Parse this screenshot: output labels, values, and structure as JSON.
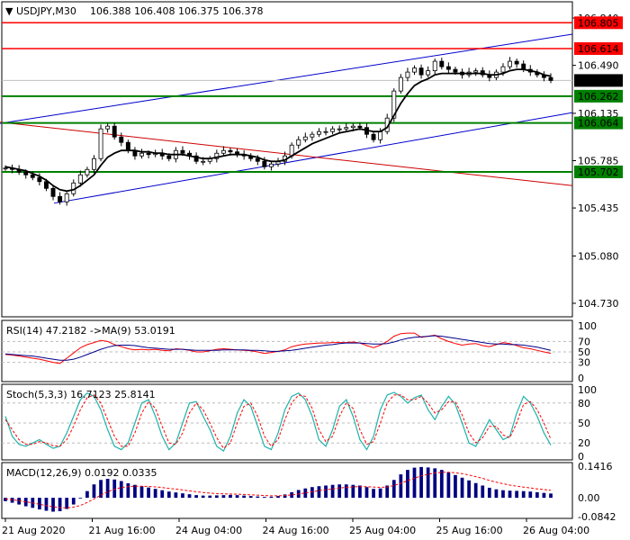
{
  "header": {
    "symbol": "USDJPY,M30",
    "ohlc": "106.388 106.408 106.375 106.378"
  },
  "price_panel": {
    "y_ticks": [
      "106.840",
      "106.490",
      "106.135",
      "105.785",
      "105.435",
      "105.080",
      "104.730"
    ],
    "current_price": "106.378",
    "resistance_levels": [
      "106.805",
      "106.614"
    ],
    "support_levels": [
      "106.262",
      "106.064",
      "105.702"
    ]
  },
  "rsi_panel": {
    "label": "RSI(14) 47.2182  ->MA(9) 53.0191",
    "y_ticks": [
      "100",
      "70",
      "50",
      "30",
      "0"
    ]
  },
  "stoch_panel": {
    "label": "Stoch(5,3,3) 16.7123 25.8141",
    "y_ticks": [
      "100",
      "80",
      "50",
      "20",
      "0"
    ]
  },
  "macd_panel": {
    "label": "MACD(12,26,9) 0.0192 0.0335",
    "y_ticks": [
      "0.1416",
      "0.00",
      "-0.0842"
    ]
  },
  "x_labels": [
    "21 Aug 2020",
    "21 Aug 16:00",
    "24 Aug 04:00",
    "24 Aug 16:00",
    "25 Aug 04:00",
    "25 Aug 16:00",
    "26 Aug 04:00"
  ],
  "colors": {
    "resistance": "#ff0000",
    "support": "#008000",
    "channel": "#0000cc",
    "trendline": "#cc0000",
    "price_tag_text": "#ffffff",
    "current_tag": "#000000",
    "ma_line": "#000000",
    "rsi_line": "#ff0000",
    "rsi_ma_line": "#00008b",
    "stoch_main": "#20b2aa",
    "stoch_signal": "#ff0000",
    "macd_hist": "#000080",
    "macd_signal": "#ff0000"
  },
  "chart_data": [
    {
      "type": "line",
      "title": "USDJPY,M30",
      "series": [
        {
          "name": "Close",
          "values": [
            105.73,
            105.72,
            105.7,
            105.68,
            105.66,
            105.63,
            105.58,
            105.52,
            105.48,
            105.54,
            105.62,
            105.68,
            105.72,
            105.8,
            106.02,
            106.04,
            105.96,
            105.92,
            105.86,
            105.82,
            105.84,
            105.83,
            105.84,
            105.82,
            105.8,
            105.86,
            105.84,
            105.82,
            105.78,
            105.78,
            105.8,
            105.84,
            105.86,
            105.85,
            105.83,
            105.82,
            105.8,
            105.78,
            105.74,
            105.76,
            105.78,
            105.82,
            105.9,
            105.94,
            105.96,
            105.98,
            106.0,
            106.0,
            106.02,
            106.02,
            106.03,
            106.04,
            106.03,
            105.98,
            105.94,
            106.0,
            106.1,
            106.3,
            106.4,
            106.44,
            106.47,
            106.42,
            106.45,
            106.52,
            106.48,
            106.46,
            106.44,
            106.42,
            106.44,
            106.45,
            106.42,
            106.4,
            106.44,
            106.48,
            106.52,
            106.5,
            106.46,
            106.44,
            106.42,
            106.4,
            106.378
          ]
        },
        {
          "name": "Moving Average",
          "values": [
            105.74,
            105.73,
            105.72,
            105.71,
            105.69,
            105.67,
            105.64,
            105.6,
            105.57,
            105.56,
            105.57,
            105.6,
            105.64,
            105.68,
            105.75,
            105.81,
            105.84,
            105.86,
            105.86,
            105.86,
            105.85,
            105.85,
            105.84,
            105.84,
            105.83,
            105.83,
            105.83,
            105.82,
            105.81,
            105.8,
            105.8,
            105.81,
            105.82,
            105.83,
            105.83,
            105.83,
            105.82,
            105.81,
            105.79,
            105.78,
            105.78,
            105.79,
            105.82,
            105.85,
            105.88,
            105.91,
            105.93,
            105.95,
            105.97,
            105.99,
            106.0,
            106.01,
            106.02,
            106.01,
            106.0,
            106.0,
            106.03,
            106.12,
            106.21,
            106.28,
            106.34,
            106.37,
            106.39,
            106.42,
            106.43,
            106.43,
            106.43,
            106.43,
            106.43,
            106.43,
            106.43,
            106.42,
            106.42,
            106.43,
            106.45,
            106.46,
            106.46,
            106.45,
            106.44,
            106.42,
            106.41
          ]
        }
      ],
      "ylim": [
        104.63,
        106.96
      ],
      "y_ticks": [
        106.84,
        106.49,
        106.135,
        105.785,
        105.435,
        105.08,
        104.73
      ],
      "grid": false
    },
    {
      "type": "line",
      "title": "RSI(14) 47.2182  ->MA(9) 53.0191",
      "series": [
        {
          "name": "RSI",
          "values": [
            45,
            44,
            42,
            40,
            38,
            36,
            33,
            30,
            28,
            38,
            48,
            58,
            64,
            68,
            72,
            70,
            64,
            60,
            56,
            54,
            55,
            54,
            55,
            53,
            52,
            56,
            55,
            53,
            50,
            50,
            52,
            55,
            56,
            55,
            54,
            53,
            52,
            50,
            47,
            49,
            51,
            54,
            60,
            63,
            65,
            66,
            67,
            67,
            68,
            68,
            68,
            69,
            67,
            62,
            58,
            63,
            70,
            80,
            85,
            86,
            86,
            78,
            80,
            82,
            75,
            70,
            66,
            63,
            65,
            66,
            62,
            60,
            64,
            68,
            66,
            62,
            58,
            56,
            53,
            50,
            47.2182
          ]
        },
        {
          "name": "MA(9)",
          "values": [
            46,
            45,
            44,
            43,
            42,
            40,
            38,
            36,
            34,
            34,
            36,
            40,
            45,
            50,
            55,
            59,
            62,
            63,
            63,
            62,
            60,
            58,
            57,
            56,
            55,
            55,
            55,
            54,
            53,
            53,
            53,
            53,
            54,
            54,
            54,
            54,
            53,
            53,
            52,
            51,
            51,
            52,
            53,
            55,
            57,
            59,
            61,
            63,
            64,
            66,
            67,
            67,
            67,
            66,
            65,
            65,
            66,
            69,
            73,
            76,
            78,
            79,
            80,
            81,
            80,
            78,
            76,
            74,
            72,
            70,
            68,
            66,
            65,
            65,
            64,
            64,
            63,
            61,
            59,
            56,
            53.0191
          ]
        }
      ],
      "ylim": [
        0,
        100
      ],
      "y_ticks": [
        100,
        70,
        50,
        30,
        0
      ]
    },
    {
      "type": "line",
      "title": "Stoch(5,3,3) 16.7123 25.8141",
      "series": [
        {
          "name": "Main",
          "values": [
            60,
            30,
            18,
            15,
            20,
            25,
            18,
            12,
            15,
            35,
            60,
            85,
            95,
            90,
            70,
            40,
            15,
            10,
            20,
            50,
            80,
            85,
            60,
            30,
            10,
            20,
            50,
            80,
            82,
            60,
            40,
            15,
            8,
            30,
            65,
            85,
            75,
            45,
            15,
            10,
            35,
            70,
            90,
            95,
            85,
            60,
            25,
            15,
            40,
            75,
            85,
            60,
            25,
            10,
            30,
            70,
            92,
            96,
            90,
            80,
            88,
            92,
            70,
            55,
            75,
            90,
            78,
            50,
            20,
            15,
            35,
            55,
            40,
            25,
            30,
            65,
            90,
            80,
            60,
            35,
            16.7123
          ]
        },
        {
          "name": "Signal",
          "values": [
            55,
            40,
            25,
            18,
            18,
            22,
            20,
            16,
            15,
            25,
            45,
            70,
            88,
            92,
            80,
            55,
            30,
            15,
            15,
            35,
            65,
            82,
            72,
            45,
            20,
            18,
            35,
            65,
            80,
            70,
            50,
            28,
            12,
            20,
            50,
            75,
            80,
            60,
            30,
            15,
            25,
            55,
            80,
            92,
            90,
            72,
            40,
            22,
            30,
            60,
            80,
            72,
            40,
            18,
            22,
            50,
            80,
            92,
            92,
            85,
            85,
            90,
            80,
            65,
            70,
            82,
            82,
            62,
            35,
            20,
            28,
            45,
            45,
            32,
            28,
            50,
            78,
            82,
            70,
            50,
            25.8141
          ]
        }
      ],
      "ylim": [
        0,
        100
      ],
      "y_ticks": [
        100,
        80,
        50,
        20,
        0
      ]
    },
    {
      "type": "bar",
      "title": "MACD(12,26,9) 0.0192 0.0335",
      "series": [
        {
          "name": "MACD",
          "values": [
            -0.015,
            -0.022,
            -0.03,
            -0.038,
            -0.045,
            -0.052,
            -0.058,
            -0.062,
            -0.06,
            -0.05,
            -0.03,
            0.0,
            0.03,
            0.06,
            0.08,
            0.085,
            0.082,
            0.075,
            0.065,
            0.058,
            0.052,
            0.046,
            0.04,
            0.034,
            0.028,
            0.024,
            0.02,
            0.016,
            0.012,
            0.01,
            0.01,
            0.011,
            0.012,
            0.013,
            0.012,
            0.01,
            0.008,
            0.006,
            0.004,
            0.005,
            0.008,
            0.015,
            0.025,
            0.035,
            0.042,
            0.048,
            0.052,
            0.055,
            0.058,
            0.06,
            0.06,
            0.058,
            0.055,
            0.048,
            0.04,
            0.042,
            0.055,
            0.08,
            0.105,
            0.125,
            0.135,
            0.138,
            0.136,
            0.132,
            0.125,
            0.115,
            0.102,
            0.09,
            0.078,
            0.066,
            0.055,
            0.045,
            0.038,
            0.034,
            0.032,
            0.031,
            0.03,
            0.028,
            0.025,
            0.022,
            0.0192
          ]
        },
        {
          "name": "Signal",
          "values": [
            -0.005,
            -0.009,
            -0.013,
            -0.018,
            -0.023,
            -0.029,
            -0.035,
            -0.04,
            -0.044,
            -0.045,
            -0.042,
            -0.034,
            -0.021,
            -0.005,
            0.012,
            0.027,
            0.038,
            0.046,
            0.05,
            0.052,
            0.052,
            0.051,
            0.049,
            0.046,
            0.042,
            0.039,
            0.035,
            0.031,
            0.027,
            0.024,
            0.021,
            0.019,
            0.018,
            0.017,
            0.016,
            0.015,
            0.013,
            0.012,
            0.01,
            0.009,
            0.009,
            0.01,
            0.013,
            0.017,
            0.022,
            0.027,
            0.032,
            0.036,
            0.04,
            0.044,
            0.047,
            0.049,
            0.05,
            0.05,
            0.048,
            0.047,
            0.049,
            0.055,
            0.065,
            0.077,
            0.088,
            0.098,
            0.106,
            0.111,
            0.114,
            0.114,
            0.112,
            0.108,
            0.102,
            0.095,
            0.087,
            0.078,
            0.07,
            0.063,
            0.057,
            0.052,
            0.048,
            0.044,
            0.04,
            0.037,
            0.0335
          ]
        }
      ],
      "ylim": [
        -0.0842,
        0.1416
      ],
      "y_ticks": [
        0.1416,
        0.0,
        -0.0842
      ]
    }
  ]
}
